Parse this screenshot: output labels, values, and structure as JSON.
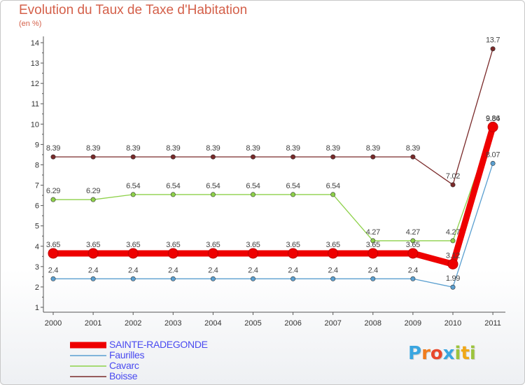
{
  "colors": {
    "title": "#d4604a",
    "axis": "#555555",
    "legend_text": "#4a4af0"
  },
  "brand": {
    "letters": [
      "P",
      "r",
      "o",
      "x",
      "i",
      "t",
      "i"
    ],
    "colors": [
      "#3aa6e0",
      "#f07c1c",
      "#e8482c",
      "#3aa6e0",
      "#9cc43c",
      "#f0a818",
      "#9cc43c"
    ]
  },
  "chart_data": {
    "type": "line",
    "title": "Evolution du Taux de Taxe d'Habitation",
    "subtitle": "(en %)",
    "xlabel": "",
    "ylabel": "",
    "categories": [
      "2000",
      "2001",
      "2002",
      "2003",
      "2004",
      "2005",
      "2006",
      "2007",
      "2008",
      "2009",
      "2010",
      "2011"
    ],
    "ylim": [
      1,
      14
    ],
    "yticks": [
      1,
      2,
      3,
      4,
      5,
      6,
      7,
      8,
      9,
      10,
      11,
      12,
      13,
      14
    ],
    "grid": false,
    "legend_position": "bottom-left",
    "series": [
      {
        "name": "SAINTE-RADEGONDE",
        "color": "#ee0000",
        "thick": true,
        "values": [
          3.65,
          3.65,
          3.65,
          3.65,
          3.65,
          3.65,
          3.65,
          3.65,
          3.65,
          3.65,
          3.12,
          9.86
        ],
        "labels": [
          "3.65",
          "3.65",
          "3.65",
          "3.65",
          "3.65",
          "3.65",
          "3.65",
          "3.65",
          "3.65",
          "3.65",
          "3.12",
          "9.86"
        ]
      },
      {
        "name": "Faurilles",
        "color": "#5a9fd0",
        "thick": false,
        "values": [
          2.4,
          2.4,
          2.4,
          2.4,
          2.4,
          2.4,
          2.4,
          2.4,
          2.4,
          2.4,
          1.99,
          8.07
        ],
        "labels": [
          "2.4",
          "2.4",
          "2.4",
          "2.4",
          "2.4",
          "2.4",
          "2.4",
          "2.4",
          "2.4",
          "2.4",
          "1.99",
          "8.07"
        ]
      },
      {
        "name": "Cavarc",
        "color": "#8ed14a",
        "thick": false,
        "values": [
          6.29,
          6.29,
          6.54,
          6.54,
          6.54,
          6.54,
          6.54,
          6.54,
          4.27,
          4.27,
          4.27,
          9.84
        ],
        "labels": [
          "6.29",
          "6.29",
          "6.54",
          "6.54",
          "6.54",
          "6.54",
          "6.54",
          "6.54",
          "4.27",
          "4.27",
          "4.27",
          "9.84"
        ]
      },
      {
        "name": "Boisse",
        "color": "#7a2a2a",
        "thick": false,
        "values": [
          8.39,
          8.39,
          8.39,
          8.39,
          8.39,
          8.39,
          8.39,
          8.39,
          8.39,
          8.39,
          7.02,
          13.7
        ],
        "labels": [
          "8.39",
          "8.39",
          "8.39",
          "8.39",
          "8.39",
          "8.39",
          "8.39",
          "8.39",
          "8.39",
          "8.39",
          "7.02",
          "13.7"
        ]
      }
    ]
  }
}
